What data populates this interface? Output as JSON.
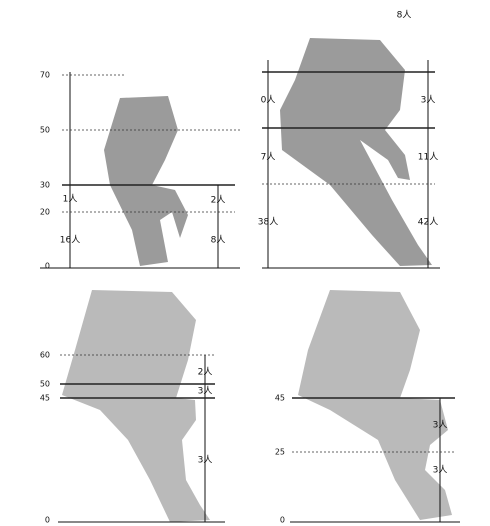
{
  "panels": [
    {
      "ticks": [
        "70",
        "50",
        "30",
        "20",
        "0"
      ],
      "left_counts": [
        "1人",
        "16人"
      ],
      "right_counts": [
        "2人",
        "8人"
      ]
    },
    {
      "top_label": "8人",
      "left_counts": [
        "0人",
        "7人",
        "38人"
      ],
      "right_counts": [
        "3人",
        "11人",
        "42人"
      ]
    },
    {
      "ticks": [
        "60",
        "50",
        "45",
        "0"
      ],
      "counts": [
        "2人",
        "3人",
        "3人"
      ]
    },
    {
      "ticks": [
        "45",
        "25",
        "0"
      ],
      "counts": [
        "3人",
        "3人"
      ]
    }
  ]
}
